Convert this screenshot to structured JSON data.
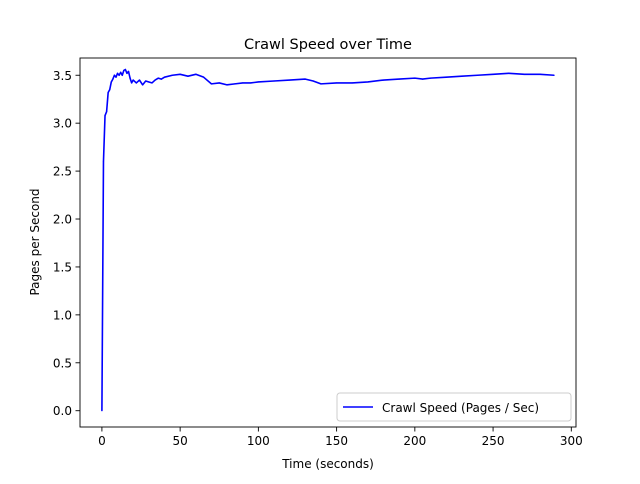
{
  "chart_data": {
    "type": "line",
    "title": "Crawl Speed over Time",
    "xlabel": "Time (seconds)",
    "ylabel": "Pages per Second",
    "xlim": [
      -14,
      303
    ],
    "ylim": [
      -0.17,
      3.68
    ],
    "xticks": [
      0,
      50,
      100,
      150,
      200,
      250,
      300
    ],
    "yticks": [
      0.0,
      0.5,
      1.0,
      1.5,
      2.0,
      2.5,
      3.0,
      3.5
    ],
    "xtick_labels": [
      "0",
      "50",
      "100",
      "150",
      "200",
      "250",
      "300"
    ],
    "ytick_labels": [
      "0.0",
      "0.5",
      "1.0",
      "1.5",
      "2.0",
      "2.5",
      "3.0",
      "3.5"
    ],
    "grid": false,
    "legend_position": "lower-right",
    "series": [
      {
        "name": "Crawl Speed (Pages / Sec)",
        "color": "#0000ff",
        "x": [
          0,
          1,
          2,
          3,
          4,
          5,
          6,
          7,
          8,
          9,
          10,
          11,
          12,
          13,
          14,
          15,
          16,
          17,
          18,
          19,
          20,
          22,
          24,
          26,
          28,
          30,
          32,
          34,
          36,
          38,
          40,
          45,
          50,
          55,
          60,
          65,
          70,
          75,
          80,
          85,
          90,
          95,
          100,
          110,
          120,
          130,
          135,
          140,
          150,
          160,
          170,
          180,
          190,
          200,
          205,
          210,
          220,
          230,
          240,
          250,
          260,
          270,
          280,
          289
        ],
        "y": [
          0.0,
          2.6,
          3.08,
          3.12,
          3.32,
          3.35,
          3.43,
          3.46,
          3.5,
          3.48,
          3.52,
          3.5,
          3.53,
          3.5,
          3.55,
          3.56,
          3.52,
          3.54,
          3.47,
          3.42,
          3.45,
          3.42,
          3.45,
          3.4,
          3.44,
          3.43,
          3.42,
          3.45,
          3.47,
          3.46,
          3.48,
          3.5,
          3.51,
          3.49,
          3.51,
          3.48,
          3.41,
          3.42,
          3.4,
          3.41,
          3.42,
          3.42,
          3.43,
          3.44,
          3.45,
          3.46,
          3.44,
          3.41,
          3.42,
          3.42,
          3.43,
          3.45,
          3.46,
          3.47,
          3.46,
          3.47,
          3.48,
          3.49,
          3.5,
          3.51,
          3.52,
          3.51,
          3.51,
          3.5
        ]
      }
    ]
  }
}
